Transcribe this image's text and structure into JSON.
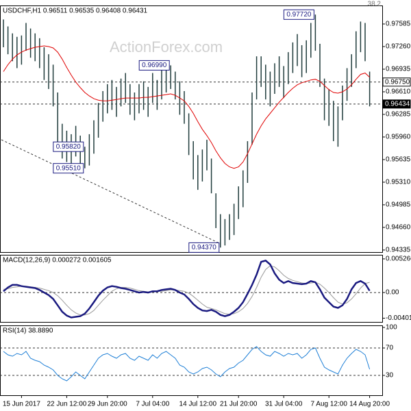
{
  "chart_data": [
    {
      "type": "ohlc",
      "title": "USDCHF,H1 0.96511 0.96535 0.96408 0.96431",
      "corner_label": "38.2",
      "watermark": "ActionForex.com",
      "bar_color": "#1f3b3b",
      "high": [
        0.9765,
        0.9755,
        0.9745,
        0.974,
        0.9742,
        0.976,
        0.9752,
        0.9745,
        0.9738,
        0.9725,
        0.9715,
        0.97,
        0.966,
        0.9615,
        0.9605,
        0.96,
        0.9612,
        0.9598,
        0.9582,
        0.96,
        0.962,
        0.9645,
        0.9662,
        0.9672,
        0.9678,
        0.9668,
        0.968,
        0.9688,
        0.9672,
        0.966,
        0.9672,
        0.9676,
        0.9668,
        0.9688,
        0.9678,
        0.9692,
        0.9698,
        0.9699,
        0.969,
        0.9676,
        0.9662,
        0.963,
        0.959,
        0.957,
        0.9578,
        0.9592,
        0.9565,
        0.9515,
        0.9485,
        0.9478,
        0.9485,
        0.95,
        0.9525,
        0.9548,
        0.959,
        0.966,
        0.9712,
        0.9712,
        0.97,
        0.969,
        0.9702,
        0.9712,
        0.9698,
        0.9718,
        0.9732,
        0.9744,
        0.9728,
        0.9735,
        0.976,
        0.9772,
        0.973,
        0.968,
        0.9665,
        0.9648,
        0.964,
        0.967,
        0.9695,
        0.9715,
        0.9748,
        0.9762,
        0.976,
        0.969
      ],
      "low": [
        0.9725,
        0.9715,
        0.9705,
        0.9695,
        0.97,
        0.972,
        0.971,
        0.9705,
        0.9695,
        0.9678,
        0.9665,
        0.964,
        0.9585,
        0.9565,
        0.956,
        0.9552,
        0.9568,
        0.9555,
        0.9551,
        0.9555,
        0.9572,
        0.9595,
        0.9618,
        0.963,
        0.9635,
        0.9625,
        0.964,
        0.9645,
        0.9628,
        0.962,
        0.963,
        0.9635,
        0.9625,
        0.9645,
        0.9635,
        0.965,
        0.966,
        0.9665,
        0.965,
        0.9628,
        0.9615,
        0.957,
        0.9535,
        0.952,
        0.9532,
        0.9548,
        0.9515,
        0.9465,
        0.9437,
        0.944,
        0.9448,
        0.9455,
        0.9478,
        0.9495,
        0.953,
        0.9585,
        0.965,
        0.9668,
        0.965,
        0.964,
        0.9658,
        0.9668,
        0.9652,
        0.9672,
        0.9688,
        0.9698,
        0.9682,
        0.9688,
        0.971,
        0.972,
        0.9668,
        0.962,
        0.9612,
        0.959,
        0.9582,
        0.962,
        0.9648,
        0.9668,
        0.9695,
        0.9718,
        0.9705,
        0.964
      ],
      "overlay": {
        "color": "#e00000",
        "values": [
          0.969,
          0.97,
          0.9708,
          0.9714,
          0.9718,
          0.9721,
          0.9723,
          0.9725,
          0.9726,
          0.9727,
          0.9726,
          0.9724,
          0.9718,
          0.9708,
          0.9696,
          0.9685,
          0.9675,
          0.9667,
          0.966,
          0.9655,
          0.9651,
          0.9649,
          0.9648,
          0.9648,
          0.9649,
          0.965,
          0.9651,
          0.9652,
          0.9652,
          0.9652,
          0.9652,
          0.9653,
          0.9653,
          0.9654,
          0.9655,
          0.9656,
          0.9657,
          0.9658,
          0.9656,
          0.9652,
          0.9648,
          0.964,
          0.963,
          0.9618,
          0.9607,
          0.9598,
          0.9588,
          0.9576,
          0.9566,
          0.9558,
          0.9553,
          0.9551,
          0.9553,
          0.956,
          0.9572,
          0.9586,
          0.96,
          0.9612,
          0.9622,
          0.963,
          0.9638,
          0.9646,
          0.9653,
          0.966,
          0.9666,
          0.9671,
          0.9674,
          0.9676,
          0.9678,
          0.9679,
          0.9676,
          0.967,
          0.9664,
          0.966,
          0.9659,
          0.9661,
          0.9665,
          0.9671,
          0.9679,
          0.9686,
          0.9688,
          0.9682
        ]
      },
      "ylim": [
        0.94305,
        0.97851
      ],
      "yticks": [
        0.97585,
        {
          "value": 0.9726,
          "label": "0.97260"
        },
        0.96935,
        {
          "value": 0.9661,
          "label": "0.96610"
        },
        0.96285,
        {
          "value": 0.9596,
          "label": "0.95960"
        },
        0.95635,
        {
          "value": 0.9531,
          "label": "0.95310"
        },
        0.94985,
        {
          "value": 0.9466,
          "label": "0.94660"
        },
        0.94335
      ],
      "levels": [
        {
          "value": 0.9675,
          "label": "0.96750"
        },
        {
          "value": 0.96434,
          "label": "0.96434",
          "current": true
        }
      ],
      "annotations": [
        {
          "value": 0.9772,
          "label": "0.97720"
        },
        {
          "value": 0.9699,
          "label": "0.96990"
        },
        {
          "value": 0.9551,
          "label": "0.95510"
        },
        {
          "value": 0.9582,
          "label": "0.95820"
        },
        {
          "value": 0.9437,
          "label": "0.94370"
        }
      ]
    },
    {
      "type": "macd",
      "title": "MACD(12,26,9) 0.000272 0.001605",
      "series": [
        {
          "color": "#1a1a80",
          "values": [
            0.0002,
            0.0008,
            0.0012,
            0.0012,
            0.001,
            0.0009,
            0.0008,
            0.0007,
            0.0004,
            0.0,
            -0.0004,
            -0.001,
            -0.002,
            -0.003,
            -0.0036,
            -0.0039,
            -0.0038,
            -0.0037,
            -0.0033,
            -0.0025,
            -0.0015,
            -0.0005,
            0.0003,
            0.0008,
            0.001,
            0.0009,
            0.0007,
            0.0006,
            0.0004,
            0.0002,
            0.0,
            0.0001,
            0.0,
            0.0002,
            0.0002,
            0.0004,
            0.0005,
            0.0006,
            0.0004,
            0.0,
            -0.0003,
            -0.001,
            -0.0018,
            -0.0024,
            -0.0028,
            -0.0029,
            -0.0027,
            -0.003,
            -0.0035,
            -0.0037,
            -0.0035,
            -0.003,
            -0.0024,
            -0.0015,
            -0.0002,
            0.0012,
            0.0028,
            0.0048,
            0.005,
            0.0044,
            0.003,
            0.002,
            0.0015,
            0.0018,
            0.0015,
            0.0014,
            0.0013,
            0.0014,
            0.0018,
            0.0016,
            0.0005,
            -0.0008,
            -0.0015,
            -0.0022,
            -0.0024,
            -0.002,
            -0.001,
            0.0005,
            0.0015,
            0.0018,
            0.0014,
            0.000272
          ]
        },
        {
          "color": "#999999",
          "values": [
            0.0005,
            0.0006,
            0.0008,
            0.0009,
            0.001,
            0.001,
            0.0009,
            0.0008,
            0.0007,
            0.0005,
            0.0003,
            0.0,
            -0.0005,
            -0.0012,
            -0.002,
            -0.0027,
            -0.0032,
            -0.0035,
            -0.0035,
            -0.0033,
            -0.0028,
            -0.002,
            -0.0012,
            -0.0005,
            0.0002,
            0.0006,
            0.0008,
            0.0008,
            0.0007,
            0.0005,
            0.0003,
            0.0002,
            0.0001,
            0.0001,
            0.0002,
            0.0002,
            0.0003,
            0.0004,
            0.0004,
            0.0003,
            0.0002,
            -0.0001,
            -0.0006,
            -0.0012,
            -0.0018,
            -0.0023,
            -0.0025,
            -0.0027,
            -0.003,
            -0.0033,
            -0.0034,
            -0.0033,
            -0.003,
            -0.0025,
            -0.0017,
            -0.0006,
            0.0008,
            0.0024,
            0.0036,
            0.0042,
            0.004,
            0.0034,
            0.0027,
            0.0022,
            0.0019,
            0.0017,
            0.0015,
            0.0014,
            0.0015,
            0.0016,
            0.0013,
            0.0007,
            0.0,
            -0.0008,
            -0.0015,
            -0.0018,
            -0.0016,
            -0.001,
            -0.0002,
            0.0007,
            0.0014,
            0.001605
          ]
        }
      ],
      "ylim": [
        -0.0046,
        0.0059
      ],
      "yticks": [
        0.005266,
        {
          "value": 0,
          "label": "0.00"
        },
        -0.004011
      ],
      "zero_line": true
    },
    {
      "type": "line",
      "title": "RSI(14) 38.8890",
      "color": "#1e7fd6",
      "values": [
        65,
        60,
        58,
        62,
        60,
        65,
        55,
        52,
        50,
        45,
        42,
        38,
        30,
        25,
        22,
        28,
        35,
        30,
        25,
        35,
        45,
        55,
        60,
        62,
        58,
        55,
        60,
        62,
        55,
        52,
        58,
        55,
        52,
        60,
        55,
        62,
        65,
        60,
        55,
        45,
        42,
        35,
        32,
        35,
        40,
        42,
        38,
        32,
        28,
        35,
        40,
        42,
        48,
        52,
        60,
        68,
        72,
        65,
        60,
        58,
        65,
        62,
        58,
        62,
        60,
        62,
        55,
        60,
        68,
        70,
        55,
        42,
        38,
        35,
        32,
        45,
        55,
        62,
        68,
        65,
        60,
        38.889
      ],
      "ylim": [
        1,
        103
      ],
      "yticks": [
        100,
        70,
        30
      ],
      "levels": [
        70,
        30
      ],
      "categories": [
        null,
        null,
        null,
        null,
        "15 Jun 2017",
        null,
        null,
        null,
        null,
        null,
        null,
        null,
        null,
        null,
        "22 Jun 12:00",
        null,
        null,
        null,
        null,
        null,
        null,
        null,
        null,
        "29 Jun 20:00",
        null,
        null,
        null,
        null,
        null,
        null,
        null,
        null,
        null,
        "7 Jul 04:00",
        null,
        null,
        null,
        null,
        null,
        null,
        null,
        null,
        null,
        "14 Jul 12:00",
        null,
        null,
        null,
        null,
        null,
        null,
        null,
        null,
        "21 Jul 20:00",
        null,
        null,
        null,
        null,
        null,
        null,
        null,
        null,
        null,
        "31 Jul 04:00",
        null,
        null,
        null,
        null,
        null,
        null,
        null,
        null,
        null,
        "7 Aug 12:00",
        null,
        null,
        null,
        null,
        null,
        null,
        null,
        null,
        "14 Aug 20:00"
      ]
    }
  ]
}
